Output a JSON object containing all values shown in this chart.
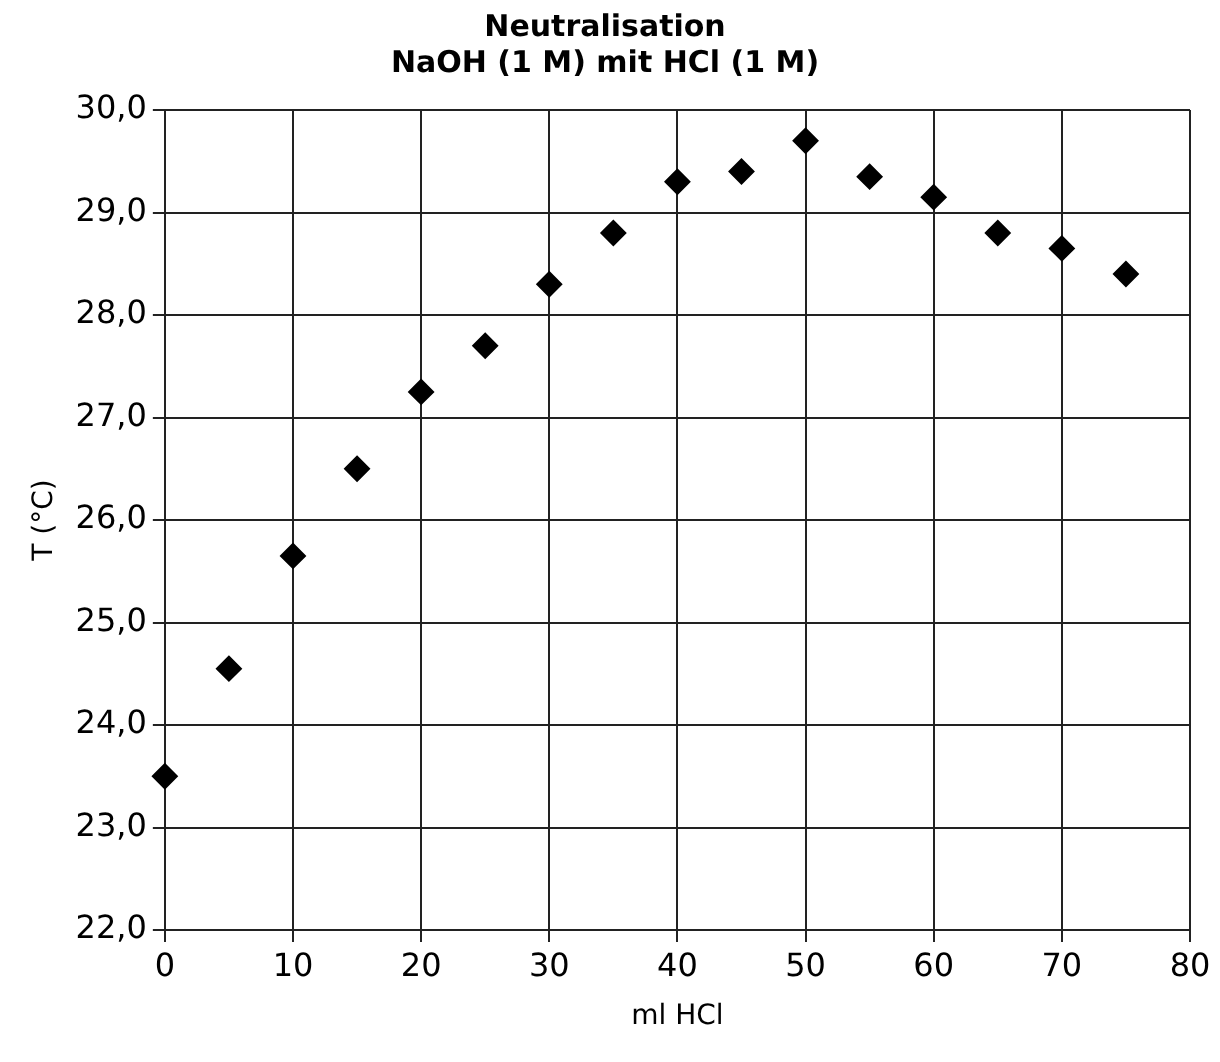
{
  "chart_data": {
    "type": "scatter",
    "title": [
      "Neutralisation",
      "NaOH (1 M) mit HCl (1 M)"
    ],
    "xlabel": "ml HCl",
    "ylabel": "T (°C)",
    "x": [
      0,
      5,
      10,
      15,
      20,
      25,
      30,
      35,
      40,
      45,
      50,
      55,
      60,
      65,
      70,
      75
    ],
    "series": [
      {
        "color": "#000000",
        "values": [
          23.5,
          24.55,
          25.65,
          26.5,
          27.25,
          27.7,
          28.3,
          28.8,
          29.3,
          29.4,
          29.7,
          29.35,
          29.15,
          28.8,
          28.65,
          28.4
        ]
      }
    ],
    "xlim": [
      0,
      80
    ],
    "xticks": [
      0,
      10,
      20,
      30,
      40,
      50,
      60,
      70,
      80
    ],
    "ylim": [
      22,
      30
    ],
    "yticks": [
      {
        "value": 22,
        "label": "22,0"
      },
      {
        "value": 23,
        "label": "23,0"
      },
      {
        "value": 24,
        "label": "24,0"
      },
      {
        "value": 25,
        "label": "25,0"
      },
      {
        "value": 26,
        "label": "26,0"
      },
      {
        "value": 27,
        "label": "27,0"
      },
      {
        "value": 28,
        "label": "28,0"
      },
      {
        "value": 29,
        "label": "29,0"
      },
      {
        "value": 30,
        "label": "30,0"
      }
    ],
    "grid": true,
    "marker": "diamond",
    "legend": false
  }
}
